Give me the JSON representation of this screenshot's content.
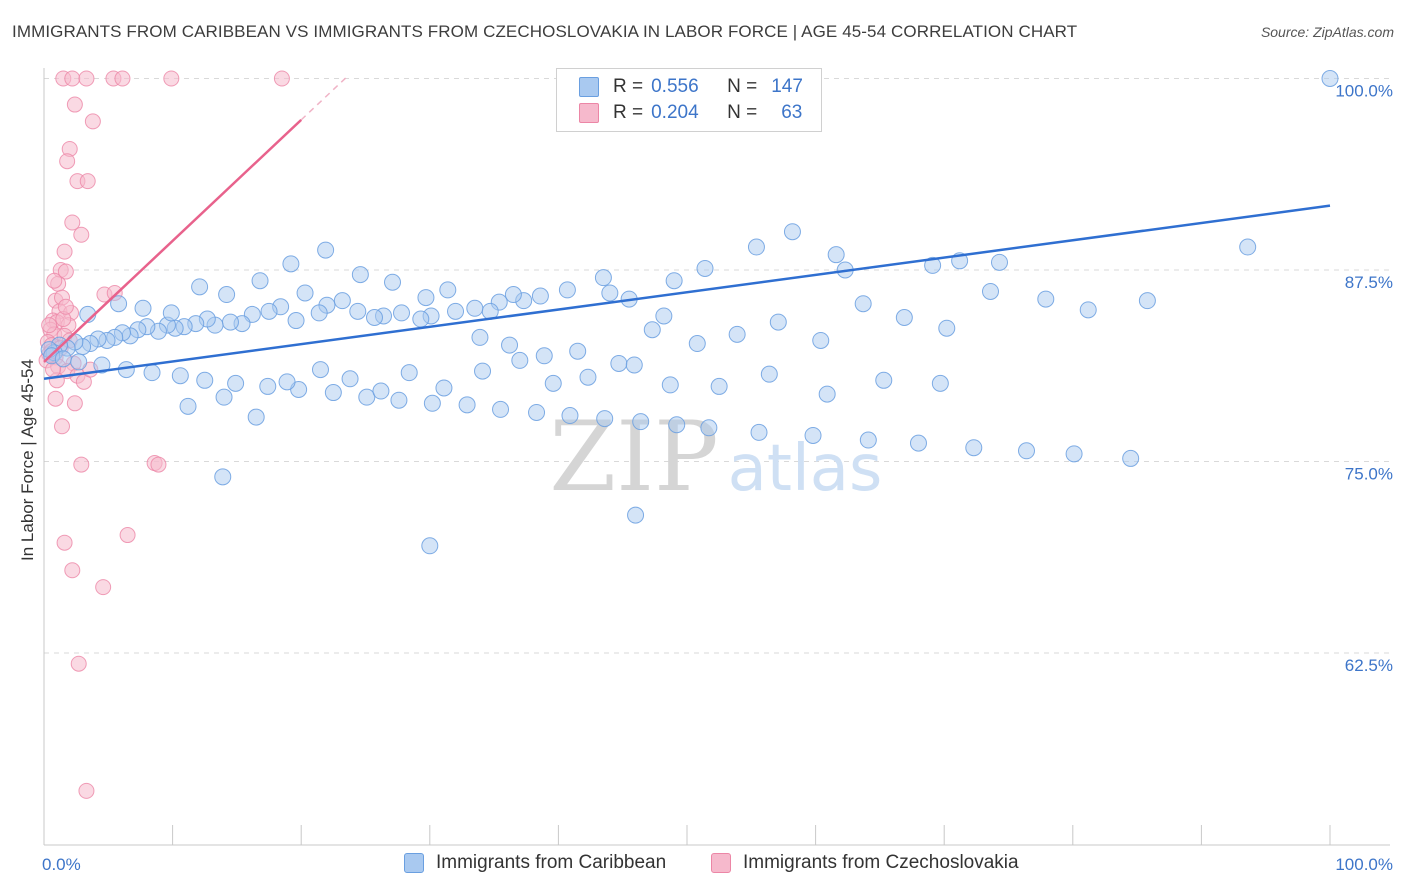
{
  "title": "IMMIGRANTS FROM CARIBBEAN VS IMMIGRANTS FROM CZECHOSLOVAKIA IN LABOR FORCE | AGE 45-54 CORRELATION CHART",
  "source": "Source: ZipAtlas.com",
  "watermark": {
    "zip": "ZIP",
    "atlas": "atlas"
  },
  "legend_top": {
    "rows": [
      {
        "r_label": "R =",
        "r_value": "0.556",
        "n_label": "N =",
        "n_value": "147"
      },
      {
        "r_label": "R =",
        "r_value": "0.204",
        "n_label": "N =",
        "n_value": "63"
      }
    ]
  },
  "legend_bottom": {
    "items": [
      "Immigrants from Caribbean",
      "Immigrants from Czechoslovakia"
    ]
  },
  "colors": {
    "blue_fill": "#a9c9f0",
    "blue_stroke": "#6a9fe0",
    "blue_line": "#2f6fd1",
    "pink_fill": "#f6b9cc",
    "pink_stroke": "#ec86a6",
    "pink_line": "#e8628c",
    "tick_label": "#3d75c9",
    "grid": "#d9d9d9"
  },
  "chart_data": {
    "type": "scatter",
    "title": "IMMIGRANTS FROM CARIBBEAN VS IMMIGRANTS FROM CZECHOSLOVAKIA IN LABOR FORCE | AGE 45-54 CORRELATION CHART",
    "xlabel": "",
    "ylabel": "In Labor Force | Age 45-54",
    "xlim": [
      0,
      100
    ],
    "ylim": [
      52.5,
      101.5
    ],
    "x_tick_labels": [
      "0.0%",
      "100.0%"
    ],
    "y_ticks": [
      62.5,
      75.0,
      87.5,
      100.0
    ],
    "y_tick_labels": [
      "62.5%",
      "75.0%",
      "87.5%",
      "100.0%"
    ],
    "grid": "horizontal dashed",
    "legend_position": "top-center",
    "series": [
      {
        "name": "Immigrants from Caribbean",
        "color": "#a9c9f0",
        "trend": {
          "x": [
            0,
            100
          ],
          "y": [
            80.4,
            91.7
          ]
        },
        "points": [
          [
            100,
            100
          ],
          [
            93.6,
            89
          ],
          [
            58.2,
            90
          ],
          [
            55.4,
            89
          ],
          [
            61.6,
            88.5
          ],
          [
            74.3,
            88
          ],
          [
            71.2,
            88.1
          ],
          [
            62.3,
            87.5
          ],
          [
            69.1,
            87.8
          ],
          [
            51.4,
            87.6
          ],
          [
            49.0,
            86.8
          ],
          [
            44.0,
            86.0
          ],
          [
            45.5,
            85.6
          ],
          [
            48.2,
            84.5
          ],
          [
            43.5,
            87.0
          ],
          [
            40.7,
            86.2
          ],
          [
            38.6,
            85.8
          ],
          [
            37.3,
            85.5
          ],
          [
            36.5,
            85.9
          ],
          [
            35.4,
            85.4
          ],
          [
            34.7,
            84.8
          ],
          [
            33.5,
            85.0
          ],
          [
            32.0,
            84.8
          ],
          [
            30.1,
            84.5
          ],
          [
            29.3,
            84.3
          ],
          [
            27.8,
            84.7
          ],
          [
            26.4,
            84.5
          ],
          [
            25.7,
            84.4
          ],
          [
            24.4,
            84.8
          ],
          [
            23.2,
            85.5
          ],
          [
            22.0,
            85.2
          ],
          [
            21.4,
            84.7
          ],
          [
            20.3,
            86.0
          ],
          [
            19.6,
            84.2
          ],
          [
            18.4,
            85.1
          ],
          [
            17.5,
            84.8
          ],
          [
            16.2,
            84.6
          ],
          [
            15.4,
            84.0
          ],
          [
            14.5,
            84.1
          ],
          [
            13.3,
            83.9
          ],
          [
            12.7,
            84.3
          ],
          [
            11.8,
            84.0
          ],
          [
            10.9,
            83.8
          ],
          [
            10.2,
            83.7
          ],
          [
            9.6,
            83.9
          ],
          [
            8.9,
            83.5
          ],
          [
            8.0,
            83.8
          ],
          [
            7.3,
            83.6
          ],
          [
            6.7,
            83.2
          ],
          [
            6.1,
            83.4
          ],
          [
            5.5,
            83.1
          ],
          [
            4.9,
            82.9
          ],
          [
            4.2,
            83.0
          ],
          [
            3.6,
            82.7
          ],
          [
            3.0,
            82.5
          ],
          [
            2.4,
            82.8
          ],
          [
            1.8,
            82.4
          ],
          [
            1.2,
            82.6
          ],
          [
            0.8,
            82.1
          ],
          [
            0.4,
            82.3
          ],
          [
            0.6,
            81.9
          ],
          [
            1.5,
            81.7
          ],
          [
            2.7,
            81.5
          ],
          [
            4.5,
            81.3
          ],
          [
            6.4,
            81.0
          ],
          [
            8.4,
            80.8
          ],
          [
            10.6,
            80.6
          ],
          [
            12.5,
            80.3
          ],
          [
            14.9,
            80.1
          ],
          [
            17.4,
            79.9
          ],
          [
            19.8,
            79.7
          ],
          [
            22.5,
            79.5
          ],
          [
            25.1,
            79.2
          ],
          [
            27.6,
            79.0
          ],
          [
            30.2,
            78.8
          ],
          [
            32.9,
            78.7
          ],
          [
            35.5,
            78.4
          ],
          [
            38.3,
            78.2
          ],
          [
            40.9,
            78.0
          ],
          [
            43.6,
            77.8
          ],
          [
            46.4,
            77.6
          ],
          [
            49.2,
            77.4
          ],
          [
            51.7,
            77.2
          ],
          [
            55.6,
            76.9
          ],
          [
            59.8,
            76.7
          ],
          [
            64.1,
            76.4
          ],
          [
            68.0,
            76.2
          ],
          [
            72.3,
            75.9
          ],
          [
            76.4,
            75.7
          ],
          [
            80.1,
            75.5
          ],
          [
            84.5,
            75.2
          ],
          [
            3.4,
            84.6
          ],
          [
            5.8,
            85.3
          ],
          [
            7.7,
            85.0
          ],
          [
            9.9,
            84.7
          ],
          [
            12.1,
            86.4
          ],
          [
            14.2,
            85.9
          ],
          [
            16.8,
            86.8
          ],
          [
            19.2,
            87.9
          ],
          [
            21.9,
            88.8
          ],
          [
            24.6,
            87.2
          ],
          [
            27.1,
            86.7
          ],
          [
            29.7,
            85.7
          ],
          [
            31.4,
            86.2
          ],
          [
            33.9,
            83.1
          ],
          [
            36.2,
            82.6
          ],
          [
            38.9,
            81.9
          ],
          [
            41.5,
            82.2
          ],
          [
            44.7,
            81.4
          ],
          [
            47.3,
            83.6
          ],
          [
            50.8,
            82.7
          ],
          [
            53.9,
            83.3
          ],
          [
            57.1,
            84.1
          ],
          [
            60.4,
            82.9
          ],
          [
            63.7,
            85.3
          ],
          [
            66.9,
            84.4
          ],
          [
            70.2,
            83.7
          ],
          [
            73.6,
            86.1
          ],
          [
            77.9,
            85.6
          ],
          [
            81.2,
            84.9
          ],
          [
            85.8,
            85.5
          ],
          [
            11.2,
            78.6
          ],
          [
            14.0,
            79.2
          ],
          [
            16.5,
            77.9
          ],
          [
            18.9,
            80.2
          ],
          [
            21.5,
            81.0
          ],
          [
            23.8,
            80.4
          ],
          [
            26.2,
            79.6
          ],
          [
            28.4,
            80.8
          ],
          [
            31.1,
            79.8
          ],
          [
            34.1,
            80.9
          ],
          [
            37.0,
            81.6
          ],
          [
            39.6,
            80.1
          ],
          [
            42.3,
            80.5
          ],
          [
            45.9,
            81.3
          ],
          [
            48.7,
            80.0
          ],
          [
            52.5,
            79.9
          ],
          [
            56.4,
            80.7
          ],
          [
            60.9,
            79.4
          ],
          [
            65.3,
            80.3
          ],
          [
            69.7,
            80.1
          ],
          [
            13.9,
            74.0
          ],
          [
            46.0,
            71.5
          ],
          [
            30.0,
            69.5
          ]
        ]
      },
      {
        "name": "Immigrants from Czechoslovakia",
        "color": "#f6b9cc",
        "trend": {
          "x": [
            0,
            20
          ],
          "y": [
            81.5,
            97.3
          ],
          "x_dashed": [
            20,
            23.6
          ]
        },
        "points": [
          [
            1.5,
            100
          ],
          [
            2.2,
            100
          ],
          [
            3.3,
            100
          ],
          [
            5.4,
            100
          ],
          [
            6.1,
            100
          ],
          [
            9.9,
            100
          ],
          [
            18.5,
            100
          ],
          [
            2.4,
            98.3
          ],
          [
            3.8,
            97.2
          ],
          [
            2.0,
            95.4
          ],
          [
            1.8,
            94.6
          ],
          [
            2.6,
            93.3
          ],
          [
            3.4,
            93.3
          ],
          [
            2.2,
            90.6
          ],
          [
            2.9,
            89.8
          ],
          [
            1.6,
            88.7
          ],
          [
            1.3,
            87.5
          ],
          [
            1.7,
            87.4
          ],
          [
            1.1,
            86.6
          ],
          [
            0.9,
            85.5
          ],
          [
            1.4,
            85.7
          ],
          [
            4.7,
            85.9
          ],
          [
            5.5,
            86.0
          ],
          [
            1.2,
            84.8
          ],
          [
            2.1,
            84.7
          ],
          [
            0.7,
            84.2
          ],
          [
            1.0,
            84.1
          ],
          [
            1.9,
            83.9
          ],
          [
            0.5,
            83.6
          ],
          [
            0.8,
            83.3
          ],
          [
            1.6,
            83.2
          ],
          [
            0.3,
            82.8
          ],
          [
            0.6,
            82.6
          ],
          [
            1.3,
            82.4
          ],
          [
            0.4,
            82.0
          ],
          [
            0.9,
            81.8
          ],
          [
            2.3,
            81.4
          ],
          [
            0.2,
            81.6
          ],
          [
            1.1,
            81.2
          ],
          [
            1.8,
            80.9
          ],
          [
            2.6,
            80.6
          ],
          [
            3.1,
            80.2
          ],
          [
            0.9,
            79.1
          ],
          [
            2.4,
            78.8
          ],
          [
            1.4,
            77.3
          ],
          [
            2.9,
            74.8
          ],
          [
            8.6,
            74.9
          ],
          [
            8.9,
            74.8
          ],
          [
            6.5,
            70.2
          ],
          [
            1.6,
            69.7
          ],
          [
            2.2,
            67.9
          ],
          [
            4.6,
            66.8
          ],
          [
            2.7,
            61.8
          ],
          [
            3.3,
            53.5
          ],
          [
            0.6,
            82.2
          ],
          [
            1.5,
            84.3
          ],
          [
            0.4,
            83.9
          ],
          [
            2.0,
            82.9
          ],
          [
            1.0,
            80.3
          ],
          [
            0.7,
            81.0
          ],
          [
            1.7,
            85.1
          ],
          [
            0.8,
            86.8
          ],
          [
            3.6,
            81.0
          ]
        ]
      }
    ]
  }
}
